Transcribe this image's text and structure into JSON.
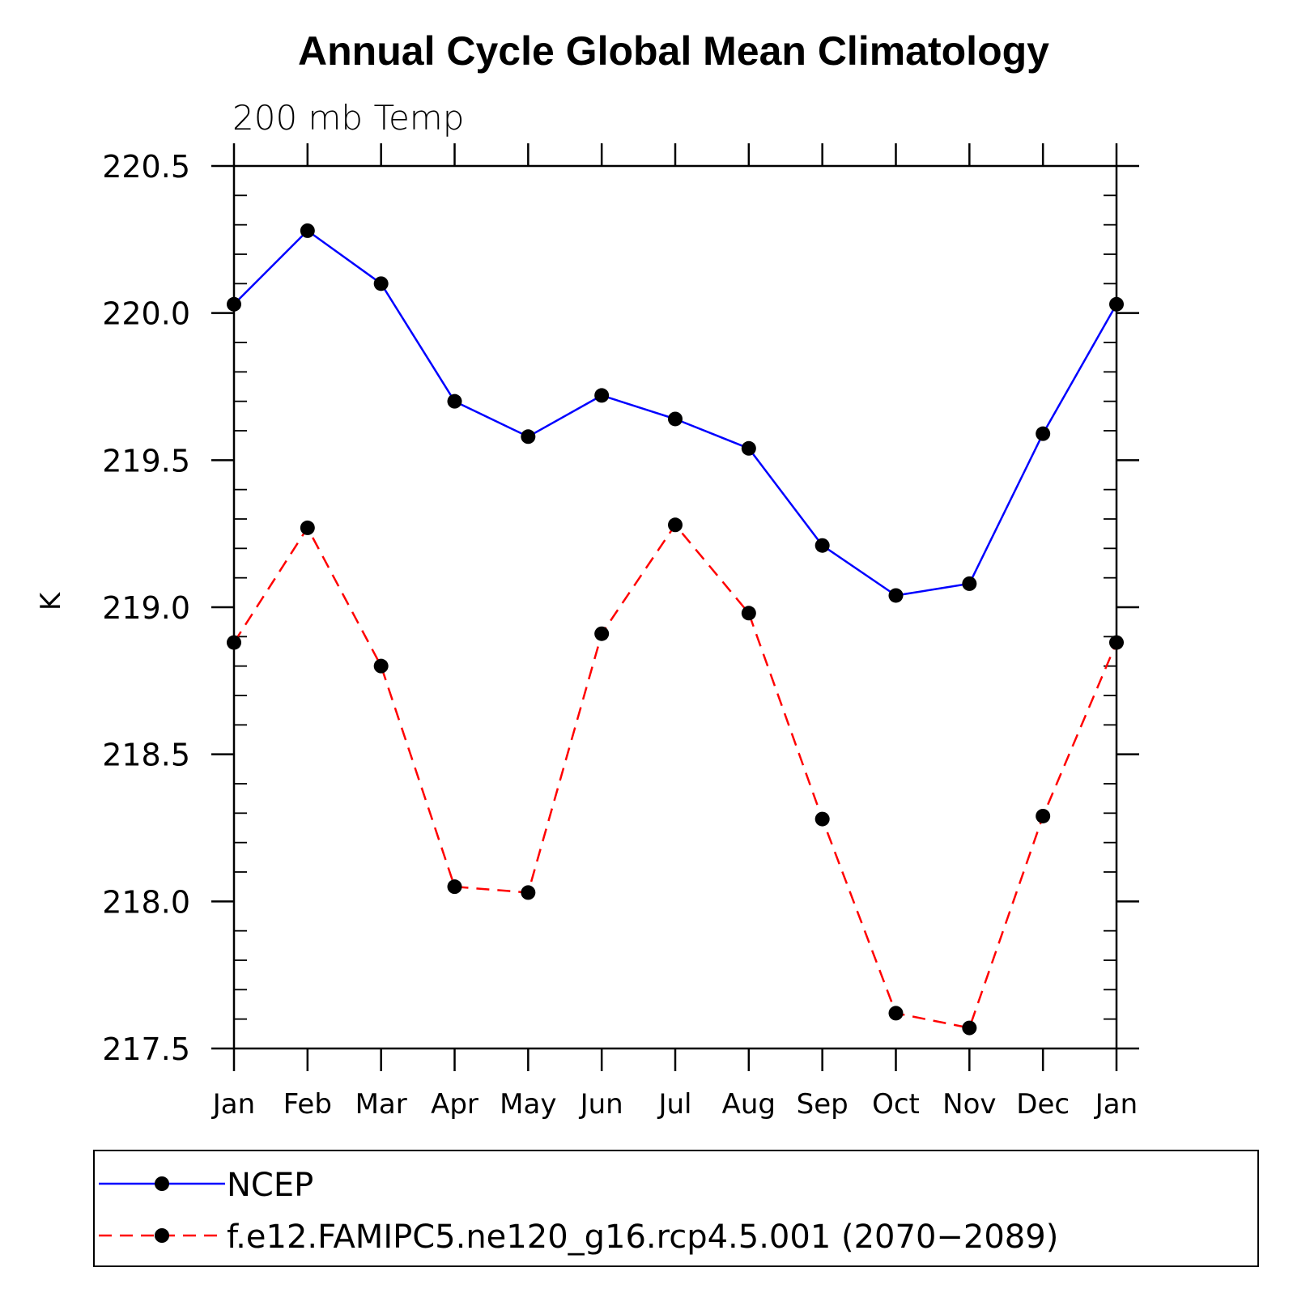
{
  "chart_data": {
    "type": "line",
    "title": "Annual Cycle Global Mean Climatology",
    "subtitle": "200 mb Temp",
    "xlabel": "",
    "ylabel": "K",
    "categories": [
      "Jan",
      "Feb",
      "Mar",
      "Apr",
      "May",
      "Jun",
      "Jul",
      "Aug",
      "Sep",
      "Oct",
      "Nov",
      "Dec",
      "Jan"
    ],
    "ylim": [
      217.5,
      220.5
    ],
    "yticks": [
      217.5,
      218.0,
      218.5,
      219.0,
      219.5,
      220.0,
      220.5
    ],
    "ytick_labels": [
      "217.5",
      "218.0",
      "218.5",
      "219.0",
      "219.5",
      "220.0",
      "220.5"
    ],
    "grid": false,
    "legend_position": "bottom",
    "series": [
      {
        "name": "NCEP",
        "color": "#0000ff",
        "line_style": "solid",
        "values": [
          220.03,
          220.28,
          220.1,
          219.7,
          219.58,
          219.72,
          219.64,
          219.54,
          219.21,
          219.04,
          219.08,
          219.59,
          220.03
        ]
      },
      {
        "name": "f.e12.FAMIPC5.ne120_g16.rcp4.5.001 (2070−2089)",
        "color": "#ff0000",
        "line_style": "dashed",
        "values": [
          218.88,
          219.27,
          218.8,
          218.05,
          218.03,
          218.91,
          219.28,
          218.98,
          218.28,
          217.62,
          217.57,
          218.29,
          218.88
        ]
      }
    ],
    "marker_color": "#000000"
  }
}
